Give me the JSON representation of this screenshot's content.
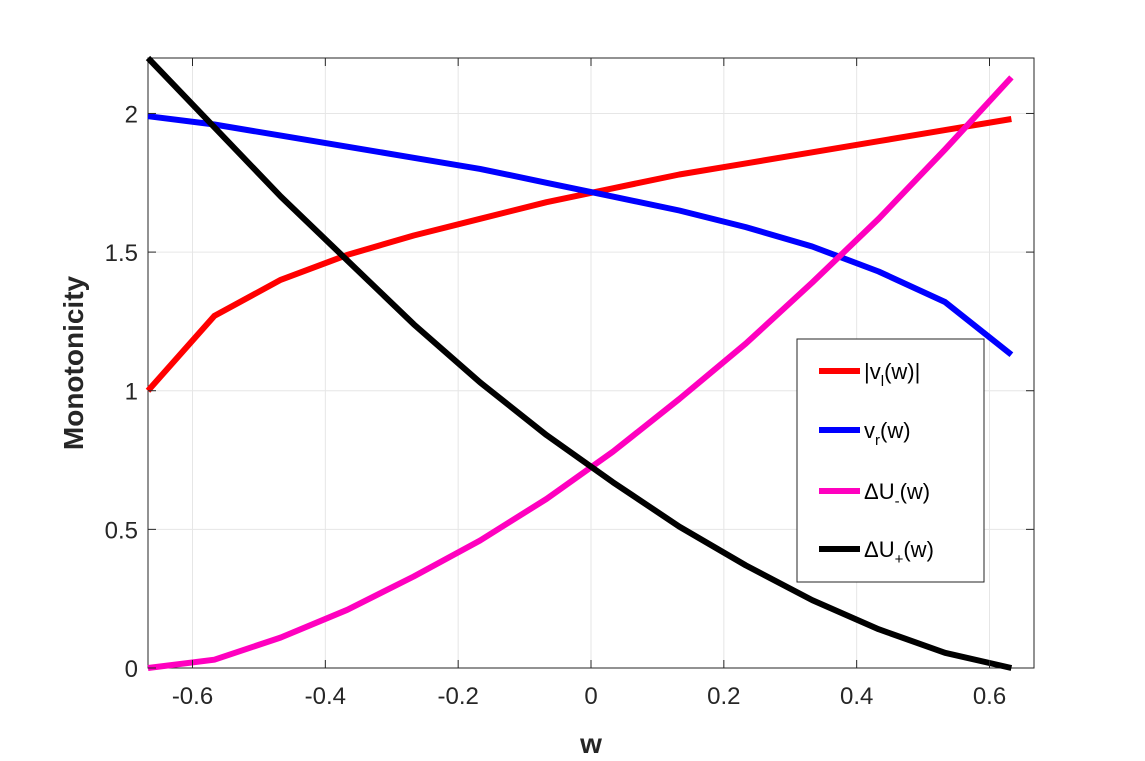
{
  "chart_data": {
    "type": "line",
    "title": "",
    "xlabel": "w",
    "ylabel": "Monotonicity",
    "xlim": [
      -0.667,
      0.667
    ],
    "ylim": [
      0,
      2.2
    ],
    "xticks": [
      "-0.6",
      "-0.4",
      "-0.2",
      "0",
      "0.2",
      "0.4",
      "0.6"
    ],
    "yticks": [
      "0",
      "0.5",
      "1",
      "1.5",
      "2"
    ],
    "grid": true,
    "legend_position": "right",
    "series": [
      {
        "key": "vl",
        "name_main": "|v",
        "name_sub": "l",
        "name_tail": "(w)|",
        "color": "#ff0000",
        "x": [
          -0.667,
          -0.567,
          -0.467,
          -0.367,
          -0.267,
          -0.167,
          -0.067,
          0.033,
          0.133,
          0.233,
          0.333,
          0.433,
          0.533,
          0.633
        ],
        "y": [
          1.0,
          1.27,
          1.4,
          1.49,
          1.56,
          1.62,
          1.68,
          1.73,
          1.78,
          1.82,
          1.86,
          1.9,
          1.94,
          1.98
        ]
      },
      {
        "key": "vr",
        "name_main": "v",
        "name_sub": "r",
        "name_tail": "(w)",
        "color": "#0000ff",
        "x": [
          -0.667,
          -0.567,
          -0.467,
          -0.367,
          -0.267,
          -0.167,
          -0.067,
          0.033,
          0.133,
          0.233,
          0.333,
          0.433,
          0.533,
          0.633
        ],
        "y": [
          1.99,
          1.96,
          1.92,
          1.88,
          1.84,
          1.8,
          1.75,
          1.7,
          1.65,
          1.59,
          1.52,
          1.43,
          1.32,
          1.13
        ]
      },
      {
        "key": "du_minus",
        "name_main": "ΔU",
        "name_sub": "-",
        "name_tail": "(w)",
        "color": "#ff00bf",
        "x": [
          -0.667,
          -0.567,
          -0.467,
          -0.367,
          -0.267,
          -0.167,
          -0.067,
          0.033,
          0.133,
          0.233,
          0.333,
          0.433,
          0.533,
          0.633
        ],
        "y": [
          0.0,
          0.03,
          0.11,
          0.21,
          0.33,
          0.46,
          0.61,
          0.78,
          0.97,
          1.17,
          1.39,
          1.62,
          1.87,
          2.13
        ]
      },
      {
        "key": "du_plus",
        "name_main": "ΔU",
        "name_sub": "+",
        "name_tail": "(w)",
        "color": "#000000",
        "x": [
          -0.667,
          -0.567,
          -0.467,
          -0.367,
          -0.267,
          -0.167,
          -0.067,
          0.033,
          0.133,
          0.233,
          0.333,
          0.433,
          0.533,
          0.633
        ],
        "y": [
          2.2,
          1.95,
          1.7,
          1.47,
          1.24,
          1.03,
          0.84,
          0.67,
          0.51,
          0.37,
          0.245,
          0.14,
          0.055,
          0.0
        ]
      }
    ]
  }
}
